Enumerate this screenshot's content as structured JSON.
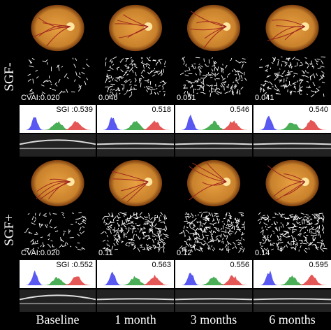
{
  "groups": [
    {
      "label": "SGF-",
      "panels": [
        {
          "cvai": "CVAI:0.020",
          "sgi": "SGI :0.539"
        },
        {
          "cvai": "0.046",
          "sgi": "0.518"
        },
        {
          "cvai": "0.051",
          "sgi": "0.546"
        },
        {
          "cvai": "0.041",
          "sgi": "0.540"
        }
      ]
    },
    {
      "label": "SGF+",
      "panels": [
        {
          "cvai": "CVAI:0.020",
          "sgi": "SGI :0.552"
        },
        {
          "cvai": "0.11",
          "sgi": "0.563"
        },
        {
          "cvai": "0.12",
          "sgi": "0.556"
        },
        {
          "cvai": "0.14",
          "sgi": "0.595"
        }
      ]
    }
  ],
  "columns": [
    "Baseline",
    "1 month",
    "3 months",
    "6 months"
  ],
  "colors": {
    "fundus_a": "#c9822c",
    "fundus_b": "#e8a042",
    "hist_blue": "#3c3cf0",
    "hist_green": "#2aa03a",
    "hist_red": "#e03a3a",
    "white": "#ffffff",
    "black": "#000000"
  }
}
